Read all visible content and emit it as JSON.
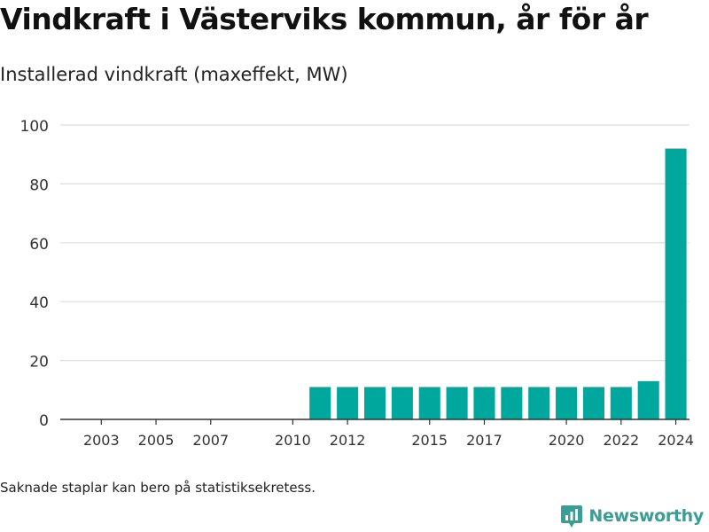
{
  "header": {
    "title": "Vindkraft i Västerviks kommun, år för år",
    "subtitle": "Installerad vindkraft (maxeffekt, MW)"
  },
  "footer": {
    "note": "Saknade staplar kan bero på statistiksekretess.",
    "brand": "Newsworthy",
    "brand_icon": "bar-chart-logo-icon"
  },
  "colors": {
    "bar": "#00a79d",
    "grid": "#dddddd",
    "axis": "#333333",
    "brand": "#3a9e95"
  },
  "chart_data": {
    "type": "bar",
    "title": "Vindkraft i Västerviks kommun, år för år",
    "subtitle": "Installerad vindkraft (maxeffekt, MW)",
    "categories": [
      2002,
      2003,
      2004,
      2005,
      2006,
      2007,
      2008,
      2009,
      2010,
      2011,
      2012,
      2013,
      2014,
      2015,
      2016,
      2017,
      2018,
      2019,
      2020,
      2021,
      2022,
      2023,
      2024
    ],
    "values": [
      null,
      null,
      null,
      null,
      null,
      null,
      null,
      null,
      null,
      11,
      11,
      11,
      11,
      11,
      11,
      11,
      11,
      11,
      11,
      11,
      11,
      13,
      92
    ],
    "x_tick_labels": [
      2003,
      2005,
      2007,
      2010,
      2012,
      2015,
      2017,
      2020,
      2022,
      2024
    ],
    "y_ticks": [
      0,
      20,
      40,
      60,
      80,
      100
    ],
    "ylim": [
      0,
      100
    ],
    "grid": true,
    "legend": "none"
  }
}
